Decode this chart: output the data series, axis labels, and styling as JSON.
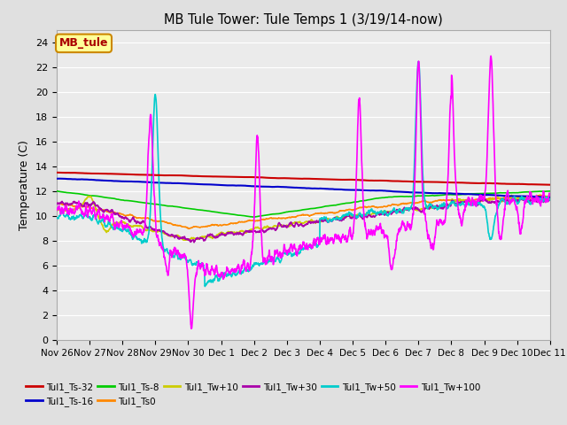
{
  "title": "MB Tule Tower: Tule Temps 1 (3/19/14-now)",
  "ylabel": "Temperature (C)",
  "ylim": [
    0,
    25
  ],
  "yticks": [
    0,
    2,
    4,
    6,
    8,
    10,
    12,
    14,
    16,
    18,
    20,
    22,
    24
  ],
  "bg_color": "#e0e0e0",
  "plot_bg": "#ebebeb",
  "grid_color": "#ffffff",
  "series": {
    "Tul1_Ts-32": {
      "color": "#cc0000",
      "lw": 1.5,
      "zorder": 5
    },
    "Tul1_Ts-16": {
      "color": "#0000cc",
      "lw": 1.5,
      "zorder": 4
    },
    "Tul1_Ts-8": {
      "color": "#00cc00",
      "lw": 1.2,
      "zorder": 3
    },
    "Tul1_Ts0": {
      "color": "#ff8800",
      "lw": 1.2,
      "zorder": 3
    },
    "Tul1_Tw+10": {
      "color": "#cccc00",
      "lw": 1.2,
      "zorder": 3
    },
    "Tul1_Tw+30": {
      "color": "#aa00aa",
      "lw": 1.2,
      "zorder": 3
    },
    "Tul1_Tw+50": {
      "color": "#00cccc",
      "lw": 1.2,
      "zorder": 4
    },
    "Tul1_Tw+100": {
      "color": "#ff00ff",
      "lw": 1.2,
      "zorder": 6
    }
  },
  "annotation_box": {
    "text": "MB_tule",
    "bg": "#ffff99",
    "edge": "#cc8800",
    "text_color": "#aa0000"
  },
  "x_tick_labels": [
    "Nov 26",
    "Nov 27",
    "Nov 28",
    "Nov 29",
    "Nov 30",
    "Dec 1",
    "Dec 2",
    "Dec 3",
    "Dec 4",
    "Dec 5",
    "Dec 6",
    "Dec 7",
    "Dec 8",
    "Dec 9",
    "Dec 10",
    "Dec 11"
  ],
  "x_tick_positions": [
    0,
    1,
    2,
    3,
    4,
    5,
    6,
    7,
    8,
    9,
    10,
    11,
    12,
    13,
    14,
    15
  ],
  "legend_order": [
    "Tul1_Ts-32",
    "Tul1_Ts-16",
    "Tul1_Ts-8",
    "Tul1_Ts0",
    "Tul1_Tw+10",
    "Tul1_Tw+30",
    "Tul1_Tw+50",
    "Tul1_Tw+100"
  ]
}
